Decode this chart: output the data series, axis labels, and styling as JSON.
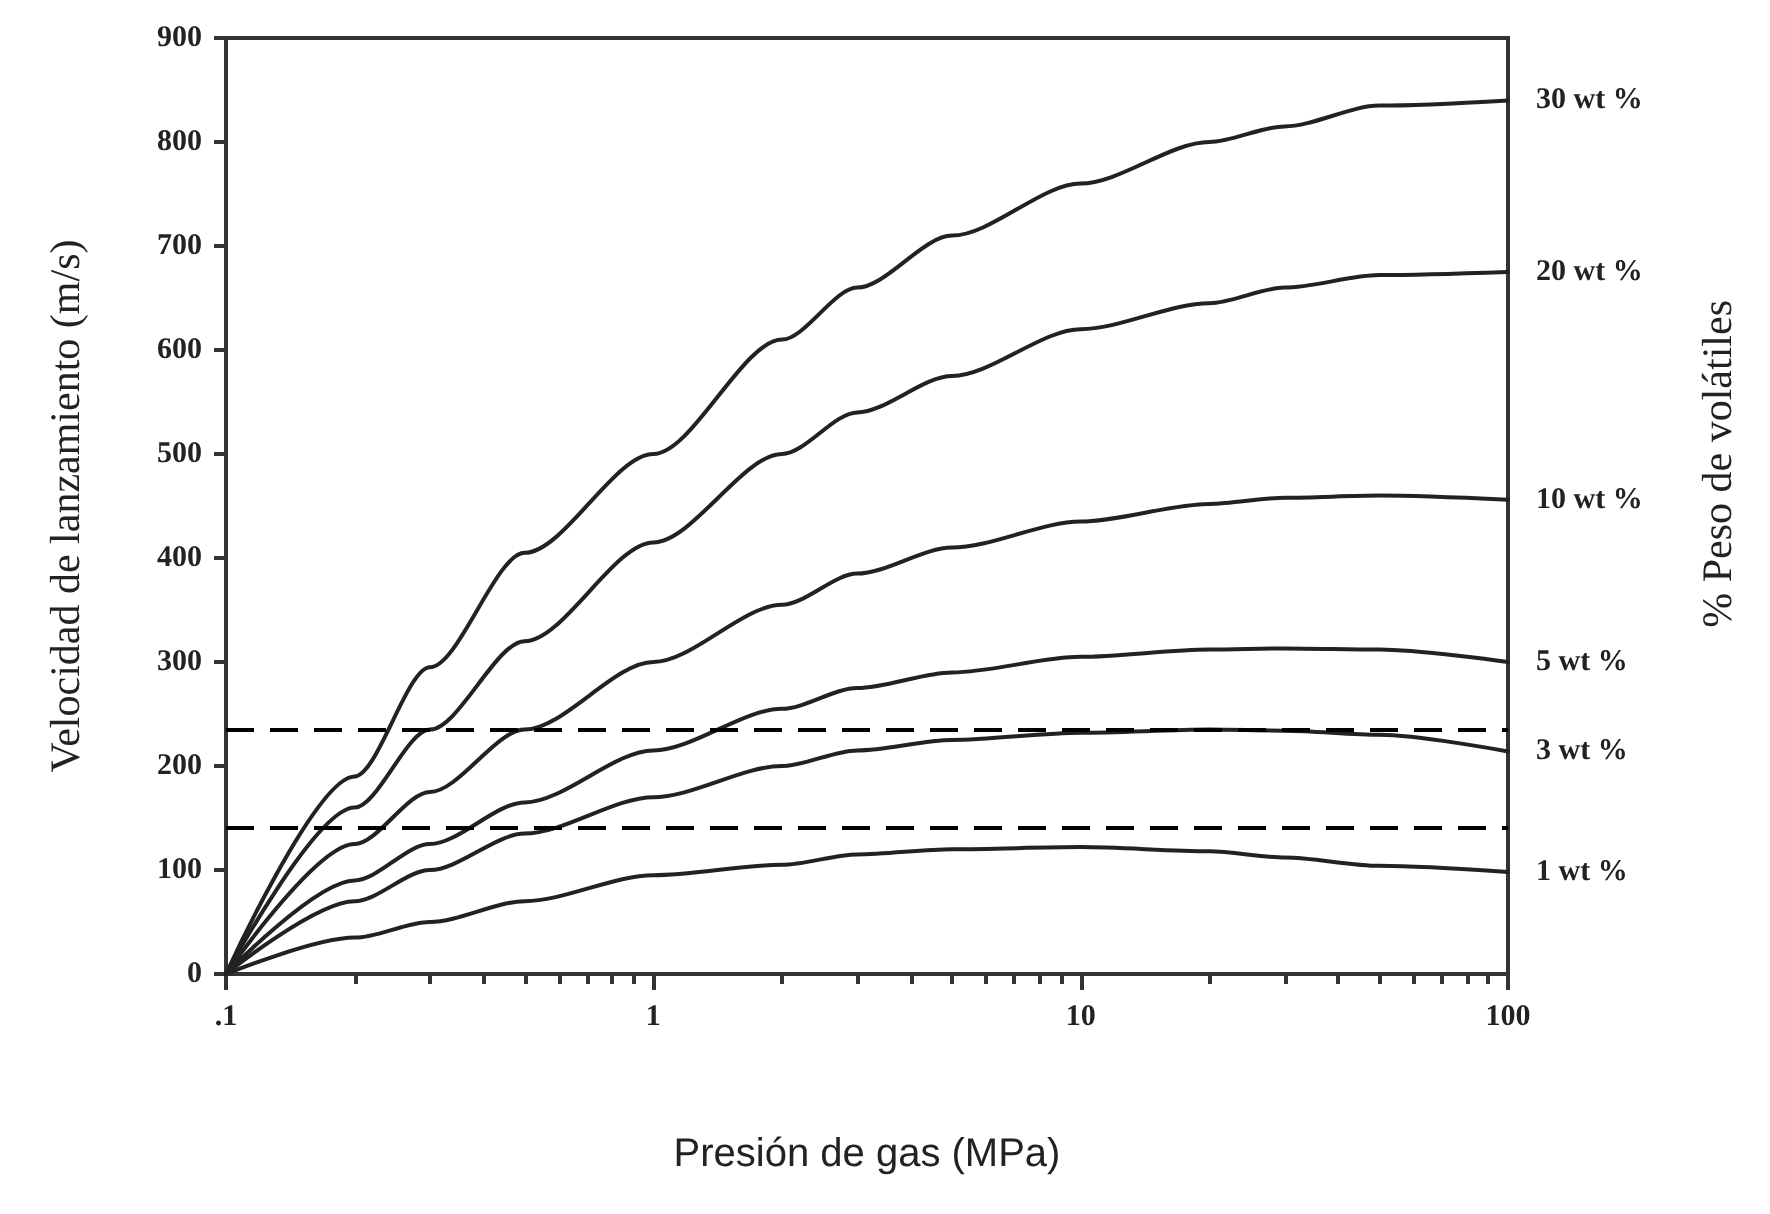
{
  "chart_data": {
    "type": "line",
    "xlabel": "Presión de gas (MPa)",
    "ylabel": "Velocidad de lanzamiento (m/s)",
    "y2label": "% Peso de volátiles",
    "x": [
      0.1,
      0.2,
      0.3,
      0.5,
      1,
      2,
      3,
      5,
      10,
      20,
      30,
      50,
      100
    ],
    "series": [
      {
        "name": "30 wt %",
        "color": "#222222",
        "values": [
          0,
          190,
          295,
          405,
          500,
          610,
          660,
          710,
          760,
          800,
          815,
          835,
          840
        ]
      },
      {
        "name": "20 wt %",
        "color": "#222222",
        "values": [
          0,
          160,
          235,
          320,
          415,
          500,
          540,
          575,
          620,
          645,
          660,
          672,
          675
        ]
      },
      {
        "name": "10 wt %",
        "color": "#222222",
        "values": [
          0,
          125,
          175,
          235,
          300,
          355,
          385,
          410,
          435,
          452,
          458,
          460,
          456
        ]
      },
      {
        "name": "5 wt %",
        "color": "#222222",
        "values": [
          0,
          90,
          125,
          165,
          215,
          255,
          275,
          290,
          305,
          312,
          313,
          312,
          300
        ]
      },
      {
        "name": "3 wt %",
        "color": "#222222",
        "values": [
          0,
          70,
          100,
          135,
          170,
          200,
          215,
          225,
          232,
          235,
          234,
          230,
          214
        ]
      },
      {
        "name": "1 wt %",
        "color": "#222222",
        "values": [
          0,
          35,
          50,
          70,
          95,
          105,
          115,
          120,
          122,
          118,
          112,
          104,
          98
        ]
      }
    ],
    "xlim": [
      0.1,
      100
    ],
    "xticks": [
      {
        "value": 0.1,
        "label": ".1"
      },
      1,
      10,
      100
    ],
    "ylim": [
      0,
      900
    ],
    "yticks": [
      0,
      100,
      200,
      300,
      400,
      500,
      600,
      700,
      800,
      900
    ],
    "log": "x",
    "grid": false,
    "legend": false,
    "marker": "none",
    "line_style": "solid",
    "ref_lines": [
      {
        "axis": "y",
        "value": 235,
        "line_style": "dashed",
        "color": "#000000"
      },
      {
        "axis": "y",
        "value": 140,
        "line_style": "dashed",
        "color": "#000000"
      }
    ]
  }
}
